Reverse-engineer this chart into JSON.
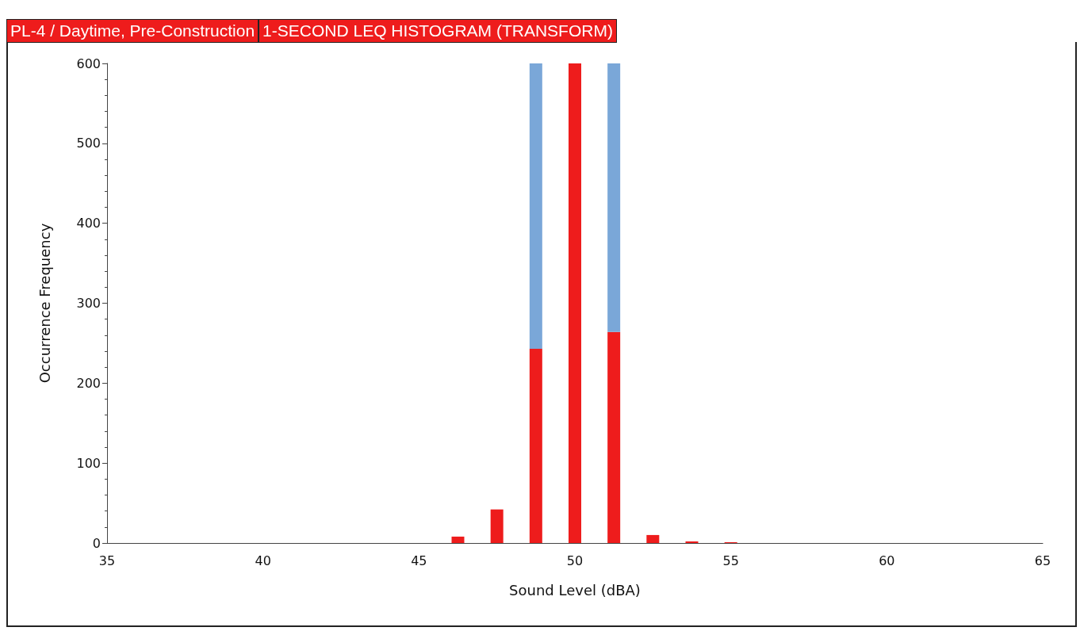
{
  "chart_data": {
    "type": "bar",
    "title": "PL-4 / Daytime, Pre-Construction",
    "subtitle": "1-SECOND LEQ HISTOGRAM (TRANSFORM)",
    "xlabel": "Sound Level (dBA)",
    "ylabel": "Occurrence Frequency",
    "x": [
      46.25,
      47.5,
      48.75,
      50,
      51.25,
      52.5,
      53.75,
      55
    ],
    "stacked": true,
    "series": [
      {
        "color": "#ee1c1c",
        "values": [
          8,
          42,
          243,
          600,
          264,
          10,
          2,
          1
        ]
      },
      {
        "color": "#7aa7d8",
        "values": [
          null,
          null,
          357,
          null,
          336,
          null,
          null,
          null
        ]
      }
    ],
    "xlim": [
      35,
      65
    ],
    "xticks": [
      35,
      40,
      45,
      50,
      55,
      60,
      65
    ],
    "ylim": [
      0,
      600
    ],
    "yticks": [
      0,
      100,
      200,
      300,
      400,
      500,
      600
    ],
    "grid": false
  }
}
